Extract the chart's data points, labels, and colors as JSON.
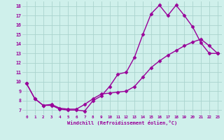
{
  "xlabel": "Windchill (Refroidissement éolien,°C)",
  "ylabel_ticks": [
    7,
    8,
    9,
    10,
    11,
    12,
    13,
    14,
    15,
    16,
    17,
    18
  ],
  "xlim": [
    -0.5,
    23.5
  ],
  "ylim": [
    6.5,
    18.5
  ],
  "xtick_vals": [
    0,
    1,
    2,
    3,
    4,
    5,
    6,
    7,
    8,
    9,
    10,
    11,
    12,
    13,
    14,
    15,
    16,
    17,
    18,
    19,
    20,
    21,
    22,
    23
  ],
  "xtick_labels": [
    "0",
    "1",
    "2",
    "3",
    "4",
    "5",
    "6",
    "7",
    "8",
    "9",
    "10",
    "11",
    "12",
    "13",
    "14",
    "15",
    "16",
    "17",
    "18",
    "19",
    "20",
    "21",
    "22",
    "23"
  ],
  "background_color": "#cff0eb",
  "grid_color": "#aad4ce",
  "line_color": "#990099",
  "line1_x": [
    0,
    1,
    2,
    3,
    4,
    5,
    6,
    7,
    8,
    9,
    10,
    11,
    12,
    13,
    14,
    15,
    16,
    17,
    18,
    19,
    20,
    21,
    22,
    23
  ],
  "line1_y": [
    9.8,
    8.2,
    7.5,
    7.5,
    7.1,
    7.0,
    7.0,
    6.9,
    8.0,
    8.5,
    9.5,
    10.8,
    11.0,
    12.6,
    15.0,
    17.2,
    18.1,
    17.0,
    18.1,
    17.0,
    15.8,
    14.1,
    13.0,
    13.0
  ],
  "line2_x": [
    0,
    1,
    2,
    3,
    4,
    5,
    6,
    7,
    8,
    9,
    10,
    11,
    12,
    13,
    14,
    15,
    16,
    17,
    18,
    19,
    20,
    21,
    22,
    23
  ],
  "line2_y": [
    9.8,
    8.2,
    7.5,
    7.6,
    7.2,
    7.1,
    7.1,
    7.6,
    8.2,
    8.7,
    8.8,
    8.9,
    9.0,
    9.5,
    10.5,
    11.5,
    12.2,
    12.8,
    13.3,
    13.8,
    14.2,
    14.5,
    13.8,
    13.0
  ],
  "marker": "D",
  "markersize": 2.5,
  "linewidth": 1.0
}
